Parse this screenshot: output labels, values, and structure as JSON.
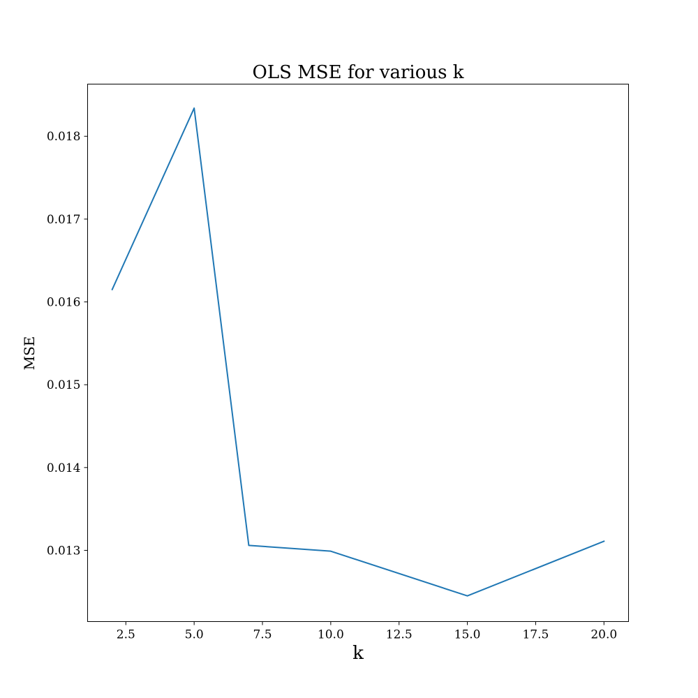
{
  "chart_data": {
    "type": "line",
    "title": "OLS MSE for various k",
    "xlabel": "k",
    "ylabel": "MSE",
    "xlim": [
      1.1,
      20.9
    ],
    "ylim": [
      0.01214,
      0.01863
    ],
    "xticks": [
      2.5,
      5.0,
      7.5,
      10.0,
      12.5,
      15.0,
      17.5,
      20.0
    ],
    "xtick_labels": [
      "2.5",
      "5.0",
      "7.5",
      "10.0",
      "12.5",
      "15.0",
      "17.5",
      "20.0"
    ],
    "yticks": [
      0.013,
      0.014,
      0.015,
      0.016,
      0.017,
      0.018
    ],
    "ytick_labels": [
      "0.013",
      "0.014",
      "0.015",
      "0.016",
      "0.017",
      "0.018"
    ],
    "grid": false,
    "series": [
      {
        "color": "#1f77b4",
        "x": [
          2,
          5,
          7,
          10,
          15,
          20
        ],
        "y": [
          0.01615,
          0.01834,
          0.01306,
          0.01299,
          0.01245,
          0.01311
        ]
      }
    ]
  }
}
